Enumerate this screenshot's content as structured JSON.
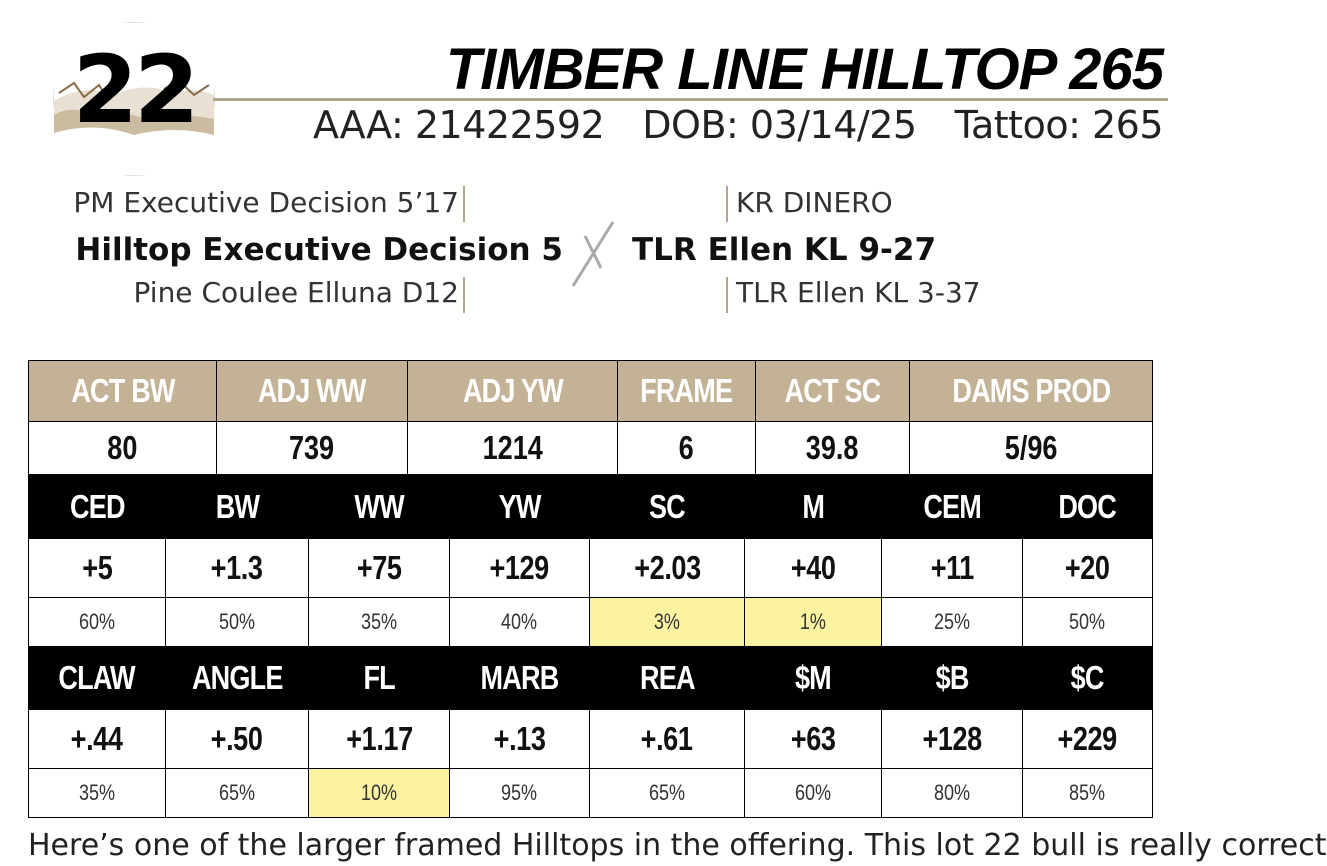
{
  "lot": {
    "number": "22"
  },
  "header": {
    "title": "TIMBER LINE HILLTOP 265",
    "aaa": "AAA: 21422592",
    "dob": "DOB: 03/14/25",
    "tattoo": "Tattoo: 265"
  },
  "pedigree": {
    "sire_sire": "PM Executive Decision 5’17",
    "sire": "Hilltop Executive Decision 5",
    "sire_dam": "Pine Coulee Elluna D12",
    "dam_sire": "KR DINERO",
    "dam": "TLR Ellen KL 9-27",
    "dam_dam": "TLR Ellen KL 3-37"
  },
  "performance": {
    "headers": [
      "ACT BW",
      "ADJ WW",
      "ADJ YW",
      "FRAME",
      "ACT SC",
      "DAMS PROD"
    ],
    "values": [
      "80",
      "739",
      "1214",
      "6",
      "39.8",
      "5/96"
    ]
  },
  "epds_1": {
    "headers": [
      "CED",
      "BW",
      "WW",
      "YW",
      "SC",
      "M",
      "CEM",
      "DOC"
    ],
    "values": [
      "+5",
      "+1.3",
      "+75",
      "+129",
      "+2.03",
      "+40",
      "+11",
      "+20"
    ],
    "percentiles": [
      "60%",
      "50%",
      "35%",
      "40%",
      "3%",
      "1%",
      "25%",
      "50%"
    ],
    "highlighted": [
      false,
      false,
      false,
      false,
      true,
      true,
      false,
      false
    ]
  },
  "epds_2": {
    "headers": [
      "CLAW",
      "ANGLE",
      "FL",
      "MARB",
      "REA",
      "$M",
      "$B",
      "$C"
    ],
    "values": [
      "+.44",
      "+.50",
      "+1.17",
      "+.13",
      "+.61",
      "+63",
      "+128",
      "+229"
    ],
    "percentiles": [
      "35%",
      "65%",
      "10%",
      "95%",
      "65%",
      "60%",
      "80%",
      "85%"
    ],
    "highlighted": [
      false,
      false,
      true,
      false,
      false,
      false,
      false,
      false
    ]
  },
  "colors": {
    "tan_header": "#c4b296",
    "highlight": "#fbf3a2",
    "rule": "#b0a58a"
  },
  "blurb": "Here’s one of the larger framed Hilltops in the offering. This lot 22 bull is really correct"
}
